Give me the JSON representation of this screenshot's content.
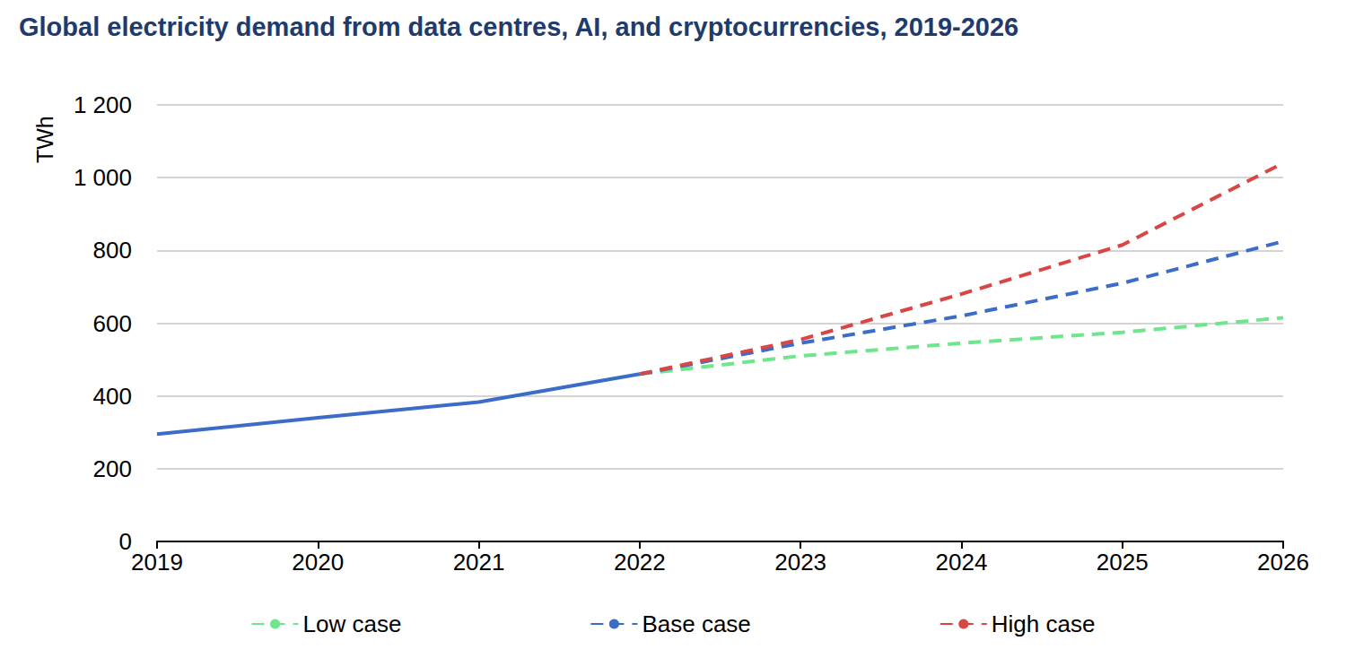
{
  "chart_data": {
    "type": "line",
    "title": "Global electricity demand from data centres, AI, and cryptocurrencies, 2019-2026",
    "y_label": "TWh",
    "x": [
      2019,
      2020,
      2021,
      2022,
      2023,
      2024,
      2025,
      2026
    ],
    "xlim": [
      2019,
      2026
    ],
    "xticks": [
      2019,
      2020,
      2021,
      2022,
      2023,
      2024,
      2025,
      2026
    ],
    "ylim": [
      0,
      1200
    ],
    "yticks": [
      0,
      200,
      400,
      600,
      800,
      {
        "value": 1000,
        "label": "1 000"
      },
      {
        "value": 1200,
        "label": "1 200"
      }
    ],
    "grid": true,
    "legend": "bottom",
    "series": [
      {
        "color": "#3b6cc8",
        "line_style": "solid",
        "values": [
          295,
          340,
          383,
          460,
          null,
          null,
          null,
          null
        ]
      },
      {
        "name": "Low case",
        "color": "#6ee68c",
        "line_style": "dashed",
        "values": [
          null,
          null,
          null,
          460,
          510,
          545,
          575,
          615
        ]
      },
      {
        "name": "Base case",
        "color": "#3b6cc8",
        "line_style": "dashed",
        "values": [
          null,
          null,
          null,
          460,
          545,
          620,
          710,
          825
        ]
      },
      {
        "name": "High case",
        "color": "#d84646",
        "line_style": "dashed",
        "values": [
          null,
          null,
          null,
          460,
          555,
          680,
          815,
          1040
        ]
      }
    ]
  }
}
